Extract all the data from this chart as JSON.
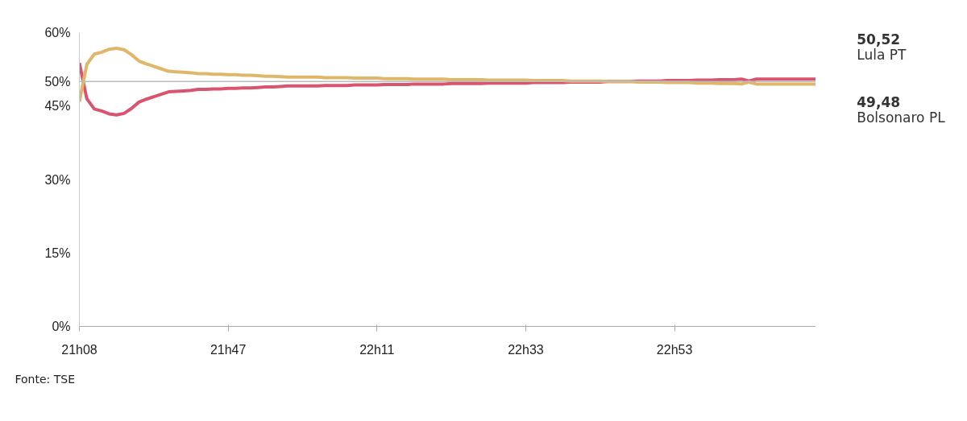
{
  "chart_data": {
    "type": "line",
    "categories": [
      "21h08",
      null,
      null,
      null,
      null,
      null,
      null,
      null,
      null,
      null,
      null,
      null,
      null,
      null,
      null,
      null,
      null,
      null,
      null,
      null,
      "21h47",
      null,
      null,
      null,
      null,
      null,
      null,
      null,
      null,
      null,
      null,
      null,
      null,
      null,
      null,
      null,
      null,
      null,
      null,
      null,
      "22h11",
      null,
      null,
      null,
      null,
      null,
      null,
      null,
      null,
      null,
      null,
      null,
      null,
      null,
      null,
      null,
      null,
      null,
      null,
      null,
      "22h33",
      null,
      null,
      null,
      null,
      null,
      null,
      null,
      null,
      null,
      null,
      null,
      null,
      null,
      null,
      null,
      null,
      null,
      null,
      null,
      "22h53",
      null,
      null,
      null,
      null,
      null,
      null,
      null,
      null,
      null,
      null,
      null,
      null,
      null,
      null,
      null,
      null,
      null,
      null,
      null
    ],
    "series": [
      {
        "name": "Lula PT",
        "color": "#d9546f",
        "values": [
          53.8,
          46.5,
          44.4,
          44.0,
          43.4,
          43.2,
          43.5,
          44.5,
          45.8,
          46.4,
          46.9,
          47.4,
          47.9,
          48.0,
          48.1,
          48.2,
          48.4,
          48.4,
          48.5,
          48.5,
          48.6,
          48.6,
          48.7,
          48.7,
          48.8,
          48.9,
          48.9,
          49.0,
          49.1,
          49.1,
          49.1,
          49.1,
          49.1,
          49.2,
          49.2,
          49.2,
          49.2,
          49.3,
          49.3,
          49.3,
          49.3,
          49.4,
          49.4,
          49.4,
          49.4,
          49.5,
          49.5,
          49.5,
          49.5,
          49.5,
          49.6,
          49.6,
          49.6,
          49.6,
          49.6,
          49.7,
          49.7,
          49.7,
          49.7,
          49.7,
          49.7,
          49.8,
          49.8,
          49.8,
          49.8,
          49.8,
          49.9,
          49.9,
          49.9,
          49.9,
          49.9,
          50.0,
          50.0,
          50.0,
          50.0,
          50.1,
          50.1,
          50.1,
          50.1,
          50.2,
          50.2,
          50.2,
          50.2,
          50.3,
          50.3,
          50.3,
          50.4,
          50.4,
          50.4,
          50.5,
          50.1,
          50.5,
          50.5,
          50.5,
          50.5,
          50.5,
          50.5,
          50.5,
          50.5,
          50.52
        ]
      },
      {
        "name": "Bolsonaro PL",
        "color": "#dfb76b",
        "values": [
          45.9,
          53.5,
          55.6,
          56.0,
          56.6,
          56.8,
          56.5,
          55.5,
          54.2,
          53.6,
          53.1,
          52.6,
          52.1,
          52.0,
          51.9,
          51.8,
          51.6,
          51.6,
          51.5,
          51.5,
          51.4,
          51.4,
          51.3,
          51.3,
          51.2,
          51.1,
          51.1,
          51.0,
          50.9,
          50.9,
          50.9,
          50.9,
          50.9,
          50.8,
          50.8,
          50.8,
          50.8,
          50.7,
          50.7,
          50.7,
          50.7,
          50.6,
          50.6,
          50.6,
          50.6,
          50.5,
          50.5,
          50.5,
          50.5,
          50.5,
          50.4,
          50.4,
          50.4,
          50.4,
          50.4,
          50.3,
          50.3,
          50.3,
          50.3,
          50.3,
          50.3,
          50.2,
          50.2,
          50.2,
          50.2,
          50.2,
          50.1,
          50.1,
          50.1,
          50.1,
          50.1,
          50.0,
          50.0,
          50.0,
          50.0,
          49.9,
          49.9,
          49.9,
          49.9,
          49.8,
          49.8,
          49.8,
          49.8,
          49.7,
          49.7,
          49.7,
          49.6,
          49.6,
          49.6,
          49.5,
          49.9,
          49.5,
          49.5,
          49.5,
          49.5,
          49.5,
          49.5,
          49.5,
          49.5,
          49.48
        ]
      }
    ],
    "ylim": [
      0,
      60
    ],
    "yticks": [
      {
        "value": 0,
        "label": "0%"
      },
      {
        "value": 15,
        "label": "15%"
      },
      {
        "value": 30,
        "label": "30%"
      },
      {
        "value": 45,
        "label": "45%"
      },
      {
        "value": 50,
        "label": "50%"
      },
      {
        "value": 60,
        "label": "60%"
      }
    ],
    "ref_lines": [
      {
        "axis": "y",
        "value": 50,
        "color": "#bbbbbb"
      }
    ],
    "annotations": [
      "50,52",
      "49,48",
      "Fonte: TSE"
    ],
    "grid": false,
    "marker": "none",
    "line_style": "solid"
  }
}
